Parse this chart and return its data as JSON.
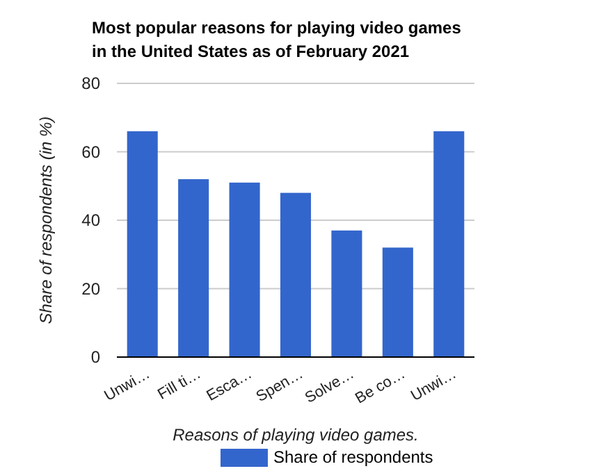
{
  "chart_data": {
    "type": "bar",
    "title": "Most popular reasons for playing video games in the United States as of February 2021",
    "xlabel": "Reasons of playing video games.",
    "ylabel": "Share of respondents (in %)",
    "categories": [
      "Unwi…",
      "Fill ti…",
      "Esca…",
      "Spen…",
      "Solve…",
      "Be co…",
      "Unwi…"
    ],
    "series": [
      {
        "name": "Share of respondents",
        "color": "#3366cc",
        "values": [
          66,
          52,
          51,
          48,
          37,
          32,
          66
        ]
      }
    ],
    "ylim": [
      0,
      80
    ],
    "yticks": [
      0,
      20,
      40,
      60,
      80
    ],
    "grid": "y",
    "legend": "bottom"
  }
}
